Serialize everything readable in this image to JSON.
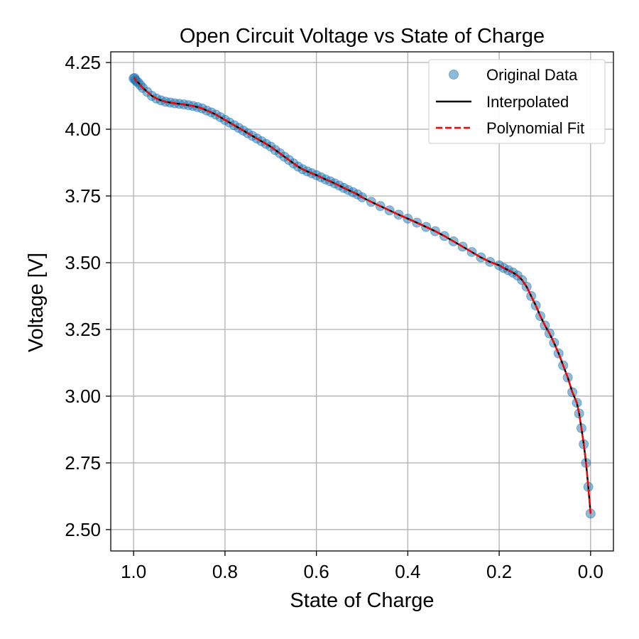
{
  "chart_data": {
    "type": "line",
    "title": "Open Circuit Voltage vs State of Charge",
    "xlabel": "State of Charge",
    "ylabel": "Voltage [V]",
    "xlim": [
      1.05,
      -0.05
    ],
    "ylim": [
      2.42,
      4.29
    ],
    "x_inverted": true,
    "xticks": [
      1.0,
      0.8,
      0.6,
      0.4,
      0.2,
      0.0
    ],
    "xtick_labels": [
      "1.0",
      "0.8",
      "0.6",
      "0.4",
      "0.2",
      "0.0"
    ],
    "yticks": [
      2.5,
      2.75,
      3.0,
      3.25,
      3.5,
      3.75,
      4.0,
      4.25
    ],
    "ytick_labels": [
      "2.50",
      "2.75",
      "3.00",
      "3.25",
      "3.50",
      "3.75",
      "4.00",
      "4.25"
    ],
    "grid": true,
    "legend_position": "top-right",
    "series": [
      {
        "name": "Original Data",
        "style": "markers",
        "color": "#1f77b4",
        "x": [
          1.0,
          0.998,
          0.996,
          0.994,
          0.99,
          0.985,
          0.98,
          0.97,
          0.96,
          0.95,
          0.94,
          0.93,
          0.92,
          0.91,
          0.9,
          0.89,
          0.88,
          0.87,
          0.86,
          0.85,
          0.84,
          0.83,
          0.82,
          0.81,
          0.8,
          0.79,
          0.78,
          0.77,
          0.76,
          0.75,
          0.74,
          0.73,
          0.72,
          0.71,
          0.7,
          0.69,
          0.68,
          0.67,
          0.66,
          0.65,
          0.64,
          0.63,
          0.62,
          0.61,
          0.6,
          0.59,
          0.58,
          0.57,
          0.56,
          0.55,
          0.54,
          0.53,
          0.52,
          0.51,
          0.5,
          0.48,
          0.46,
          0.44,
          0.42,
          0.4,
          0.38,
          0.36,
          0.34,
          0.32,
          0.3,
          0.28,
          0.26,
          0.24,
          0.22,
          0.2,
          0.19,
          0.18,
          0.17,
          0.16,
          0.15,
          0.14,
          0.13,
          0.12,
          0.11,
          0.1,
          0.09,
          0.08,
          0.07,
          0.06,
          0.05,
          0.04,
          0.03,
          0.025,
          0.02,
          0.015,
          0.01,
          0.005,
          0.0
        ],
        "y": [
          4.19,
          4.192,
          4.185,
          4.18,
          4.175,
          4.165,
          4.155,
          4.14,
          4.125,
          4.115,
          4.108,
          4.103,
          4.1,
          4.097,
          4.095,
          4.093,
          4.09,
          4.087,
          4.083,
          4.078,
          4.07,
          4.063,
          4.055,
          4.045,
          4.035,
          4.025,
          4.015,
          4.005,
          3.995,
          3.985,
          3.975,
          3.965,
          3.955,
          3.945,
          3.935,
          3.922,
          3.91,
          3.897,
          3.885,
          3.872,
          3.86,
          3.85,
          3.842,
          3.835,
          3.828,
          3.82,
          3.812,
          3.805,
          3.797,
          3.789,
          3.78,
          3.772,
          3.764,
          3.756,
          3.745,
          3.728,
          3.712,
          3.696,
          3.68,
          3.665,
          3.65,
          3.634,
          3.618,
          3.6,
          3.58,
          3.56,
          3.54,
          3.52,
          3.503,
          3.49,
          3.48,
          3.472,
          3.463,
          3.452,
          3.435,
          3.41,
          3.375,
          3.34,
          3.3,
          3.265,
          3.235,
          3.2,
          3.16,
          3.115,
          3.07,
          3.015,
          2.975,
          2.935,
          2.88,
          2.82,
          2.75,
          2.66,
          2.56
        ]
      },
      {
        "name": "Interpolated",
        "style": "solid",
        "color": "#000000"
      },
      {
        "name": "Polynomial Fit",
        "style": "dashed",
        "color": "#ff0000"
      }
    ]
  }
}
